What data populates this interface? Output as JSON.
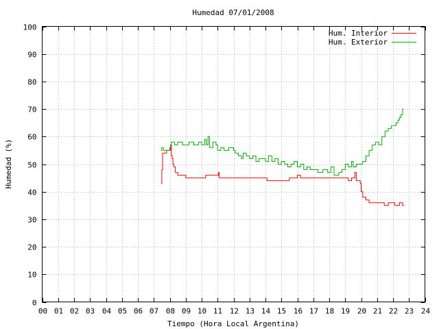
{
  "chart_data": {
    "type": "line",
    "title": "Humedad 07/01/2008",
    "xlabel": "Tiempo (Hora Local Argentina)",
    "ylabel": "Humedad (%)",
    "xlim": [
      0,
      24
    ],
    "ylim": [
      0,
      100
    ],
    "x_ticks": [
      "00",
      "01",
      "02",
      "03",
      "04",
      "05",
      "06",
      "07",
      "08",
      "09",
      "10",
      "11",
      "12",
      "13",
      "14",
      "15",
      "16",
      "17",
      "18",
      "19",
      "20",
      "21",
      "22",
      "23",
      "24"
    ],
    "y_ticks": [
      "0",
      "10",
      "20",
      "30",
      "40",
      "50",
      "60",
      "70",
      "80",
      "90",
      "100"
    ],
    "grid": true,
    "legend_position": "top-right",
    "series": [
      {
        "name": "Hum. Interior",
        "color": "#ff0000",
        "points": [
          [
            7.45,
            43
          ],
          [
            7.5,
            48
          ],
          [
            7.55,
            54
          ],
          [
            7.7,
            54
          ],
          [
            7.8,
            55
          ],
          [
            8.0,
            55
          ],
          [
            8.05,
            57
          ],
          [
            8.1,
            53
          ],
          [
            8.15,
            52
          ],
          [
            8.2,
            50
          ],
          [
            8.25,
            49
          ],
          [
            8.35,
            47
          ],
          [
            8.5,
            46
          ],
          [
            8.7,
            46
          ],
          [
            8.9,
            46
          ],
          [
            9.0,
            45
          ],
          [
            9.3,
            45
          ],
          [
            9.6,
            45
          ],
          [
            10.0,
            45
          ],
          [
            10.2,
            45
          ],
          [
            10.25,
            46
          ],
          [
            10.5,
            46
          ],
          [
            10.8,
            46
          ],
          [
            11.0,
            46
          ],
          [
            11.05,
            47
          ],
          [
            11.1,
            45
          ],
          [
            11.5,
            45
          ],
          [
            12.0,
            45
          ],
          [
            12.5,
            45
          ],
          [
            13.0,
            45
          ],
          [
            13.5,
            45
          ],
          [
            14.0,
            45
          ],
          [
            14.1,
            44
          ],
          [
            14.5,
            44
          ],
          [
            15.0,
            44
          ],
          [
            15.4,
            44
          ],
          [
            15.5,
            45
          ],
          [
            15.8,
            45
          ],
          [
            16.0,
            46
          ],
          [
            16.2,
            45
          ],
          [
            16.5,
            45
          ],
          [
            17.0,
            45
          ],
          [
            17.5,
            45
          ],
          [
            18.0,
            45
          ],
          [
            18.5,
            45
          ],
          [
            19.0,
            45
          ],
          [
            19.2,
            44
          ],
          [
            19.4,
            45
          ],
          [
            19.6,
            47
          ],
          [
            19.7,
            44
          ],
          [
            19.8,
            44
          ],
          [
            19.95,
            43
          ],
          [
            20.0,
            40
          ],
          [
            20.1,
            38
          ],
          [
            20.3,
            37
          ],
          [
            20.5,
            36
          ],
          [
            20.8,
            36
          ],
          [
            21.0,
            36
          ],
          [
            21.4,
            36
          ],
          [
            21.45,
            35
          ],
          [
            21.6,
            35
          ],
          [
            21.7,
            36
          ],
          [
            22.0,
            36
          ],
          [
            22.1,
            35
          ],
          [
            22.3,
            35
          ],
          [
            22.4,
            36
          ],
          [
            22.55,
            36
          ],
          [
            22.6,
            35
          ],
          [
            22.7,
            35
          ]
        ]
      },
      {
        "name": "Hum. Exterior",
        "color": "#00b000",
        "points": [
          [
            7.45,
            55
          ],
          [
            7.5,
            56
          ],
          [
            7.6,
            55
          ],
          [
            7.8,
            55
          ],
          [
            8.0,
            56
          ],
          [
            8.1,
            58
          ],
          [
            8.3,
            57
          ],
          [
            8.5,
            58
          ],
          [
            8.8,
            57
          ],
          [
            9.0,
            57
          ],
          [
            9.2,
            58
          ],
          [
            9.5,
            57
          ],
          [
            9.8,
            58
          ],
          [
            10.0,
            57
          ],
          [
            10.2,
            59
          ],
          [
            10.3,
            57
          ],
          [
            10.4,
            60
          ],
          [
            10.5,
            56
          ],
          [
            10.7,
            58
          ],
          [
            10.9,
            57
          ],
          [
            11.0,
            55
          ],
          [
            11.2,
            56
          ],
          [
            11.4,
            55
          ],
          [
            11.7,
            56
          ],
          [
            12.0,
            55
          ],
          [
            12.1,
            54
          ],
          [
            12.3,
            53
          ],
          [
            12.5,
            52
          ],
          [
            12.6,
            54
          ],
          [
            12.8,
            53
          ],
          [
            13.0,
            52
          ],
          [
            13.2,
            53
          ],
          [
            13.4,
            51
          ],
          [
            13.6,
            52
          ],
          [
            13.8,
            52
          ],
          [
            14.0,
            51
          ],
          [
            14.2,
            53
          ],
          [
            14.4,
            51
          ],
          [
            14.6,
            52
          ],
          [
            14.8,
            50
          ],
          [
            15.0,
            51
          ],
          [
            15.2,
            50
          ],
          [
            15.4,
            49
          ],
          [
            15.6,
            50
          ],
          [
            15.8,
            51
          ],
          [
            16.0,
            49
          ],
          [
            16.2,
            50
          ],
          [
            16.4,
            48
          ],
          [
            16.6,
            49
          ],
          [
            16.8,
            48
          ],
          [
            17.0,
            48
          ],
          [
            17.3,
            47
          ],
          [
            17.6,
            48
          ],
          [
            17.9,
            47
          ],
          [
            18.1,
            49
          ],
          [
            18.3,
            46
          ],
          [
            18.6,
            47
          ],
          [
            18.8,
            48
          ],
          [
            19.0,
            50
          ],
          [
            19.2,
            49
          ],
          [
            19.4,
            51
          ],
          [
            19.5,
            49
          ],
          [
            19.7,
            50
          ],
          [
            19.9,
            50
          ],
          [
            20.1,
            51
          ],
          [
            20.3,
            53
          ],
          [
            20.5,
            55
          ],
          [
            20.7,
            57
          ],
          [
            20.9,
            58
          ],
          [
            21.1,
            57
          ],
          [
            21.3,
            60
          ],
          [
            21.5,
            62
          ],
          [
            21.7,
            63
          ],
          [
            21.9,
            64
          ],
          [
            22.1,
            64
          ],
          [
            22.2,
            65
          ],
          [
            22.3,
            66
          ],
          [
            22.4,
            67
          ],
          [
            22.5,
            68
          ],
          [
            22.6,
            70
          ],
          [
            22.65,
            70
          ]
        ]
      }
    ]
  }
}
